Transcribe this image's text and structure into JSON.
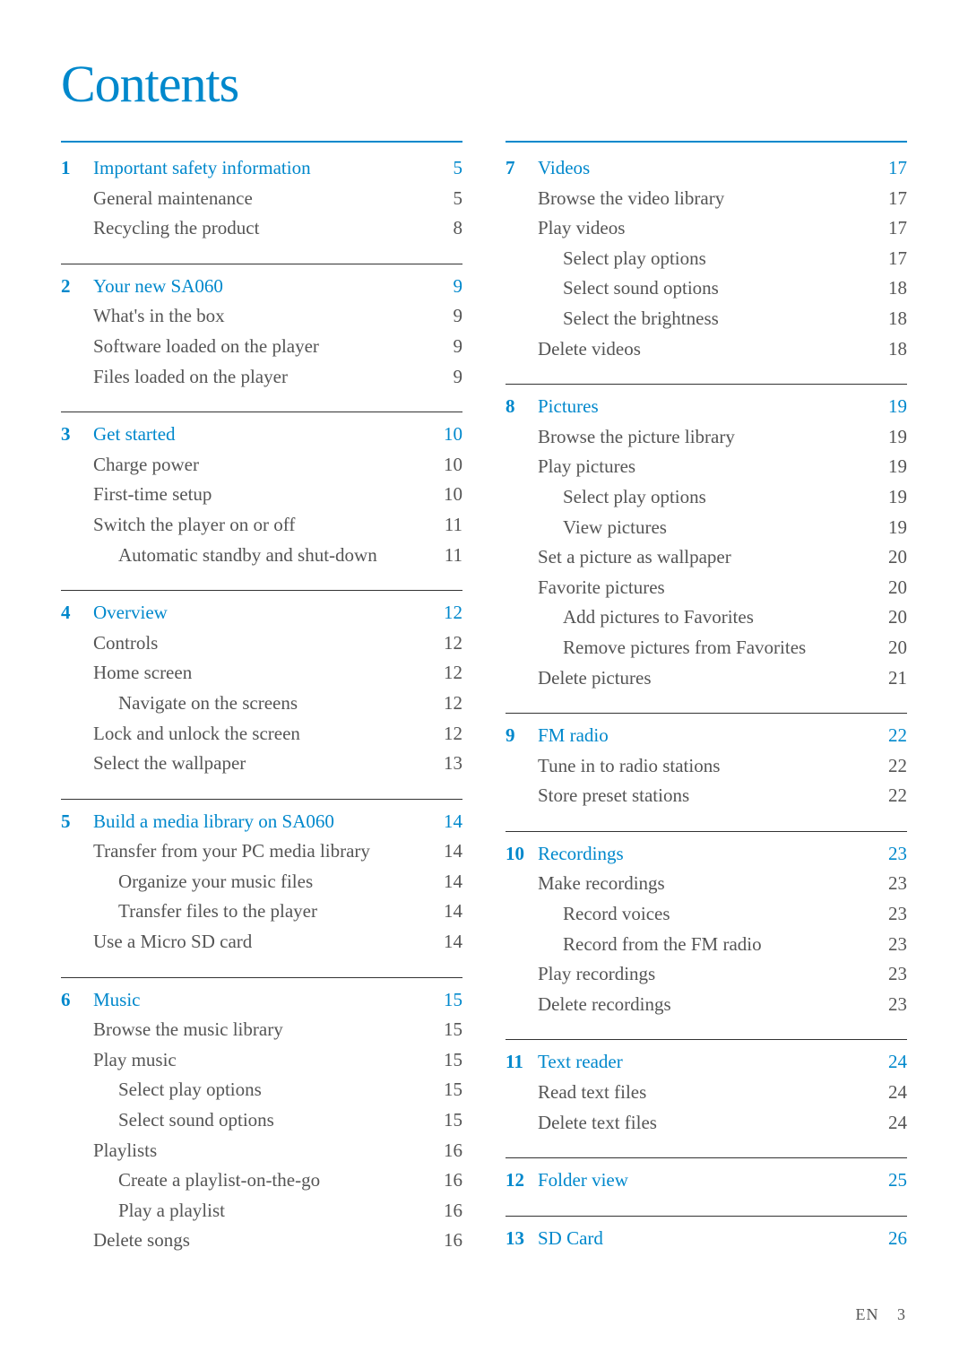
{
  "title": "Contents",
  "accent_color": "#0088cc",
  "text_color": "#555555",
  "rule_color": "#333333",
  "background_color": "#ffffff",
  "footer": {
    "lang": "EN",
    "page": "3"
  },
  "left_sections": [
    {
      "num": "1",
      "title": "Important safety information",
      "page": "5",
      "items": [
        {
          "label": "General maintenance",
          "page": "5",
          "level": 1
        },
        {
          "label": "Recycling the product",
          "page": "8",
          "level": 1
        }
      ]
    },
    {
      "num": "2",
      "title": "Your new SA060",
      "page": "9",
      "items": [
        {
          "label": "What's in the box",
          "page": "9",
          "level": 1
        },
        {
          "label": "Software loaded on the player",
          "page": "9",
          "level": 1
        },
        {
          "label": "Files loaded on the player",
          "page": "9",
          "level": 1
        }
      ]
    },
    {
      "num": "3",
      "title": "Get started",
      "page": "10",
      "items": [
        {
          "label": "Charge power",
          "page": "10",
          "level": 1
        },
        {
          "label": "First-time setup",
          "page": "10",
          "level": 1
        },
        {
          "label": "Switch the player on or off",
          "page": "11",
          "level": 1
        },
        {
          "label": "Automatic standby and shut-down",
          "page": "11",
          "level": 2
        }
      ]
    },
    {
      "num": "4",
      "title": "Overview",
      "page": "12",
      "items": [
        {
          "label": "Controls",
          "page": "12",
          "level": 1
        },
        {
          "label": "Home screen",
          "page": "12",
          "level": 1
        },
        {
          "label": "Navigate on the screens",
          "page": "12",
          "level": 2
        },
        {
          "label": "Lock and unlock the screen",
          "page": "12",
          "level": 1
        },
        {
          "label": "Select the wallpaper",
          "page": "13",
          "level": 1
        }
      ]
    },
    {
      "num": "5",
      "title": "Build a media library on SA060",
      "page": "14",
      "items": [
        {
          "label": "Transfer from your PC media library",
          "page": "14",
          "level": 1
        },
        {
          "label": "Organize your music files",
          "page": "14",
          "level": 2
        },
        {
          "label": "Transfer files to the player",
          "page": "14",
          "level": 2
        },
        {
          "label": "Use a Micro SD card",
          "page": "14",
          "level": 1
        }
      ]
    },
    {
      "num": "6",
      "title": "Music",
      "page": "15",
      "items": [
        {
          "label": "Browse the music library",
          "page": "15",
          "level": 1
        },
        {
          "label": "Play music",
          "page": "15",
          "level": 1
        },
        {
          "label": "Select play options",
          "page": "15",
          "level": 2
        },
        {
          "label": "Select sound options",
          "page": "15",
          "level": 2
        },
        {
          "label": "Playlists",
          "page": "16",
          "level": 1
        },
        {
          "label": "Create a playlist-on-the-go",
          "page": "16",
          "level": 2
        },
        {
          "label": "Play a playlist",
          "page": "16",
          "level": 2
        },
        {
          "label": "Delete songs",
          "page": "16",
          "level": 1
        }
      ]
    }
  ],
  "right_sections": [
    {
      "num": "7",
      "title": "Videos",
      "page": "17",
      "items": [
        {
          "label": "Browse the video library",
          "page": "17",
          "level": 1
        },
        {
          "label": "Play videos",
          "page": "17",
          "level": 1
        },
        {
          "label": "Select play options",
          "page": "17",
          "level": 2
        },
        {
          "label": "Select sound options",
          "page": "18",
          "level": 2
        },
        {
          "label": "Select the brightness",
          "page": "18",
          "level": 2
        },
        {
          "label": "Delete videos",
          "page": "18",
          "level": 1
        }
      ]
    },
    {
      "num": "8",
      "title": "Pictures",
      "page": "19",
      "items": [
        {
          "label": "Browse the picture library",
          "page": "19",
          "level": 1
        },
        {
          "label": "Play pictures",
          "page": "19",
          "level": 1
        },
        {
          "label": "Select play options",
          "page": "19",
          "level": 2
        },
        {
          "label": "View pictures",
          "page": "19",
          "level": 2
        },
        {
          "label": "Set a picture as wallpaper",
          "page": "20",
          "level": 1
        },
        {
          "label": "Favorite pictures",
          "page": "20",
          "level": 1
        },
        {
          "label": "Add pictures to Favorites",
          "page": "20",
          "level": 2
        },
        {
          "label": "Remove pictures from Favorites",
          "page": "20",
          "level": 2
        },
        {
          "label": "Delete pictures",
          "page": "21",
          "level": 1
        }
      ]
    },
    {
      "num": "9",
      "title": "FM radio",
      "page": "22",
      "items": [
        {
          "label": "Tune in to radio stations",
          "page": "22",
          "level": 1
        },
        {
          "label": "Store preset stations",
          "page": "22",
          "level": 1
        }
      ]
    },
    {
      "num": "10",
      "title": "Recordings",
      "page": "23",
      "items": [
        {
          "label": "Make recordings",
          "page": "23",
          "level": 1
        },
        {
          "label": "Record voices",
          "page": "23",
          "level": 2
        },
        {
          "label": "Record from the FM radio",
          "page": "23",
          "level": 2
        },
        {
          "label": "Play recordings",
          "page": "23",
          "level": 1
        },
        {
          "label": "Delete recordings",
          "page": "23",
          "level": 1
        }
      ]
    },
    {
      "num": "11",
      "title": "Text reader",
      "page": "24",
      "items": [
        {
          "label": "Read text files",
          "page": "24",
          "level": 1
        },
        {
          "label": "Delete text files",
          "page": "24",
          "level": 1
        }
      ]
    },
    {
      "num": "12",
      "title": "Folder view",
      "page": "25",
      "items": []
    },
    {
      "num": "13",
      "title": "SD Card",
      "page": "26",
      "items": []
    }
  ]
}
